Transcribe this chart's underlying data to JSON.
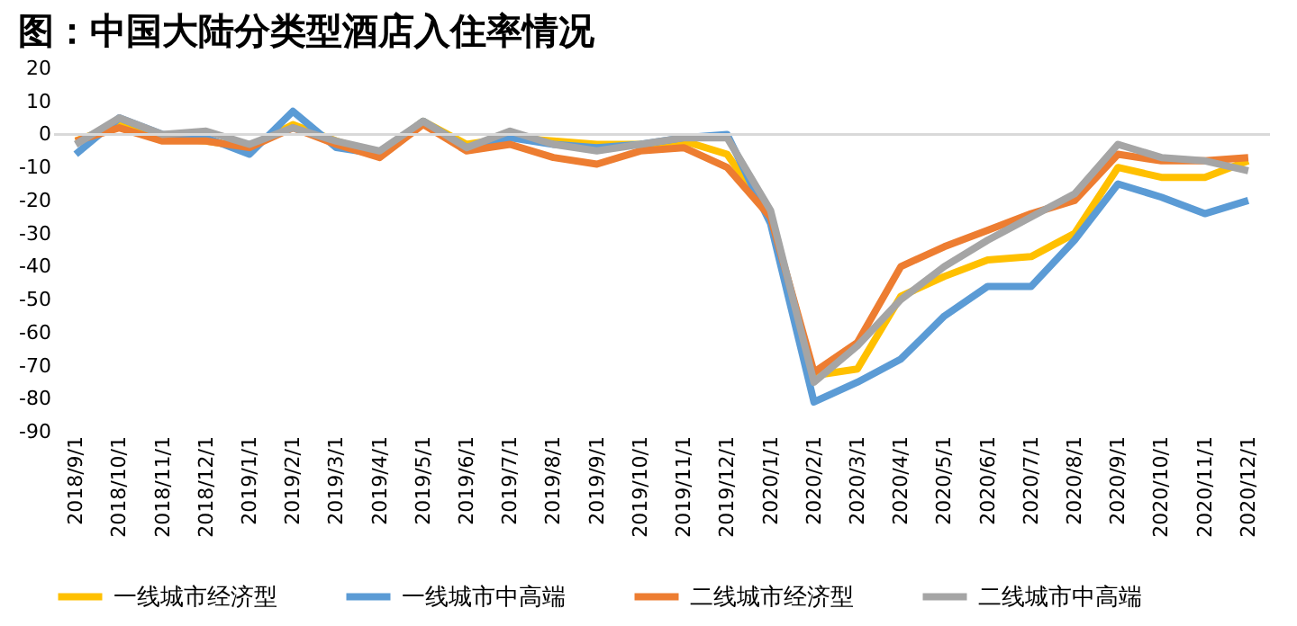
{
  "chart_data": {
    "type": "line",
    "title": "图：中国大陆分类型酒店入住率情况",
    "categories": [
      "2018/9/1",
      "2018/10/1",
      "2018/11/1",
      "2018/12/1",
      "2019/1/1",
      "2019/2/1",
      "2019/3/1",
      "2019/4/1",
      "2019/5/1",
      "2019/6/1",
      "2019/7/1",
      "2019/8/1",
      "2019/9/1",
      "2019/10/1",
      "2019/11/1",
      "2019/12/1",
      "2020/1/1",
      "2020/2/1",
      "2020/3/1",
      "2020/4/1",
      "2020/5/1",
      "2020/6/1",
      "2020/7/1",
      "2020/8/1",
      "2020/9/1",
      "2020/10/1",
      "2020/11/1",
      "2020/12/1"
    ],
    "series": [
      {
        "name": "一线城市经济型",
        "color": "#ffc000",
        "values": [
          -2,
          3,
          -1,
          -2,
          -4,
          3,
          -2,
          -6,
          4,
          -3,
          -1,
          -2,
          -3,
          -3,
          -2,
          -6,
          -25,
          -73,
          -71,
          -49,
          -43,
          -38,
          -37,
          -30,
          -10,
          -13,
          -13,
          -8
        ]
      },
      {
        "name": "一线城市中高端",
        "color": "#5b9bd5",
        "values": [
          -6,
          5,
          0,
          -1,
          -6,
          7,
          -4,
          -6,
          4,
          -4,
          -1,
          -3,
          -4,
          -3,
          -1,
          0,
          -27,
          -81,
          -75,
          -68,
          -55,
          -46,
          -46,
          -32,
          -15,
          -19,
          -24,
          -20
        ]
      },
      {
        "name": "二线城市经济型",
        "color": "#ed7d31",
        "values": [
          -2,
          2,
          -2,
          -2,
          -4,
          2,
          -3,
          -7,
          3,
          -5,
          -3,
          -7,
          -9,
          -5,
          -4,
          -10,
          -25,
          -72,
          -63,
          -40,
          -34,
          -29,
          -24,
          -20,
          -6,
          -8,
          -8,
          -7
        ]
      },
      {
        "name": "二线城市中高端",
        "color": "#a5a5a5",
        "values": [
          -3,
          5,
          0,
          1,
          -3,
          2,
          -2,
          -5,
          4,
          -4,
          1,
          -3,
          -5,
          -3,
          -1,
          -1,
          -23,
          -75,
          -64,
          -50,
          -40,
          -32,
          -25,
          -18,
          -3,
          -7,
          -8,
          -11
        ]
      }
    ],
    "ylim": [
      -90,
      20
    ],
    "yticks": [
      20,
      10,
      0,
      -10,
      -20,
      -30,
      -40,
      -50,
      -60,
      -70,
      -80,
      -90
    ],
    "ref_lines": [
      {
        "axis": "y",
        "value": 0,
        "color": "#d9d9d9"
      }
    ],
    "grid": false,
    "legend": "bottom",
    "marker": "none",
    "line_style": "solid"
  }
}
